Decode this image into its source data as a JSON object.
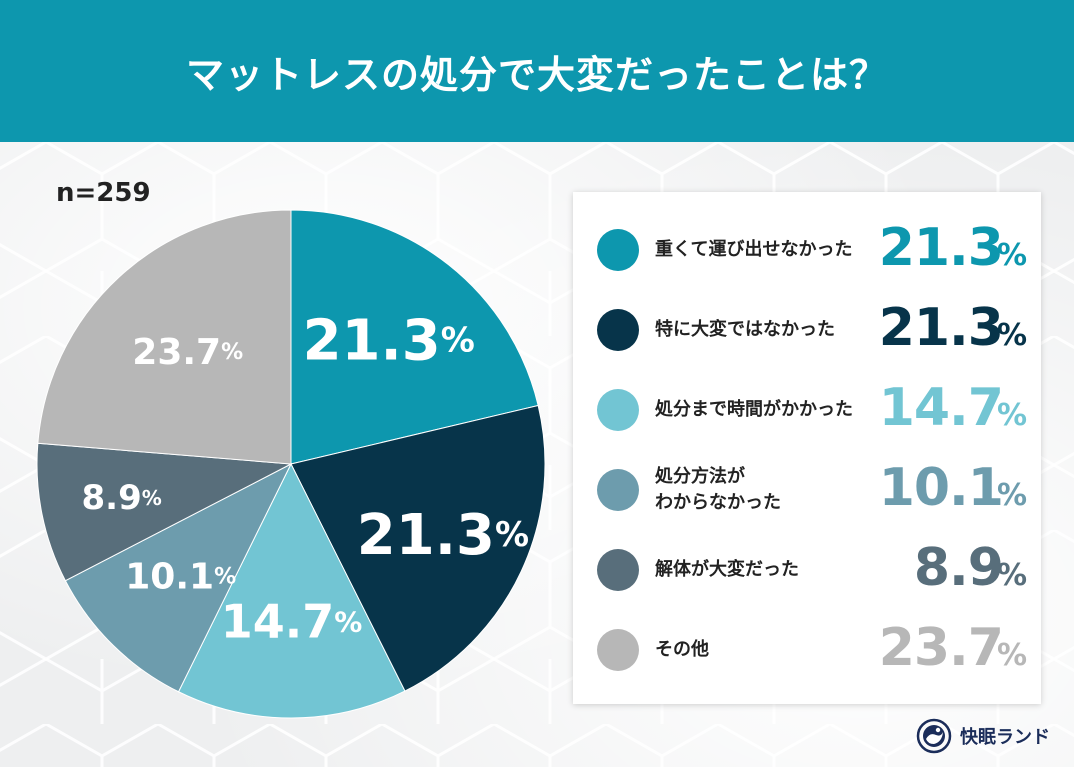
{
  "header": {
    "title": "マットレスの処分で大変だったことは？"
  },
  "sample": {
    "label": "n=259"
  },
  "colors": {
    "header_bg": "#0d97ae",
    "series": [
      "#0d97ae",
      "#07344a",
      "#72c5d3",
      "#6d9cad",
      "#586e7b",
      "#b7b7b7"
    ]
  },
  "chart_data": {
    "type": "pie",
    "title": "マットレスの処分で大変だったことは？",
    "n": "n=259",
    "categories": [
      "重くて運び出せなかった",
      "特に大変ではなかった",
      "処分まで時間がかかった",
      "処分方法がわからなかった",
      "解体が大変だった",
      "その他"
    ],
    "values": [
      21.3,
      21.3,
      14.7,
      10.1,
      8.9,
      23.7
    ],
    "value_labels": [
      "21.3",
      "21.3",
      "14.7",
      "10.1",
      "8.9",
      "23.7"
    ],
    "unit": "%",
    "legend_position": "right"
  },
  "legend": {
    "items": [
      {
        "label_lines": [
          "重くて運び出せなかった"
        ],
        "value": "21.3",
        "unit": "%",
        "color": "#0d97ae",
        "dot_color": "#0d97ae"
      },
      {
        "label_lines": [
          "特に大変ではなかった"
        ],
        "value": "21.3",
        "unit": "%",
        "color": "#07344a",
        "dot_color": "#07344a"
      },
      {
        "label_lines": [
          "処分まで時間がかかった"
        ],
        "value": "14.7",
        "unit": "%",
        "color": "#72c5d3",
        "dot_color": "#72c5d3"
      },
      {
        "label_lines": [
          "処分方法が",
          "わからなかった"
        ],
        "value": "10.1",
        "unit": "%",
        "color": "#6d9cad",
        "dot_color": "#6d9cad"
      },
      {
        "label_lines": [
          "解体が大変だった"
        ],
        "value": "8.9",
        "unit": "%",
        "color": "#586e7b",
        "dot_color": "#586e7b"
      },
      {
        "label_lines": [
          "その他"
        ],
        "value": "23.7",
        "unit": "%",
        "color": "#b7b7b7",
        "dot_color": "#b7b7b7"
      }
    ]
  },
  "brand": {
    "name": "快眠ランド",
    "icon": "kaimin-land-logo-icon"
  }
}
